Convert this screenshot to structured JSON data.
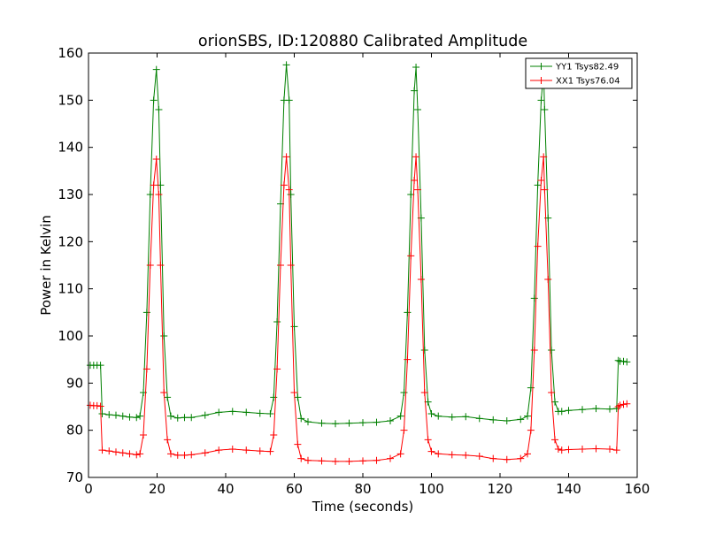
{
  "chart_data": {
    "type": "line",
    "title": "orionSBS, ID:120880 Calibrated Amplitude",
    "xlabel": "Time (seconds)",
    "ylabel": "Power in Kelvin",
    "xlim": [
      0,
      160
    ],
    "ylim": [
      70,
      160
    ],
    "x_ticks": [
      0,
      20,
      40,
      60,
      80,
      100,
      120,
      140,
      160
    ],
    "y_ticks": [
      70,
      80,
      90,
      100,
      110,
      120,
      130,
      140,
      150,
      160
    ],
    "x_tick_labels": [
      "0",
      "20",
      "40",
      "60",
      "80",
      "100",
      "120",
      "140",
      "160"
    ],
    "y_tick_labels": [
      "70",
      "80",
      "90",
      "100",
      "110",
      "120",
      "130",
      "140",
      "150",
      "160"
    ],
    "grid": false,
    "legend_position": "top-right",
    "marker": "plus",
    "series": [
      {
        "name": "YY1 Tsys82.49",
        "color": "#008000",
        "x": [
          0.5,
          1.5,
          2.5,
          3.5,
          4,
          6,
          8,
          10,
          12,
          14,
          15,
          16,
          17,
          18,
          19,
          19.8,
          20.5,
          21,
          22,
          23,
          24,
          26,
          28,
          30,
          34,
          38,
          42,
          46,
          50,
          53,
          54,
          55,
          56,
          57,
          57.7,
          58.5,
          59,
          60,
          61,
          62,
          64,
          68,
          72,
          76,
          80,
          84,
          88,
          91,
          92,
          93,
          94,
          95,
          95.5,
          96,
          97,
          98,
          99,
          100,
          102,
          106,
          110,
          114,
          118,
          122,
          126,
          128,
          129,
          130,
          131,
          132,
          132.7,
          133,
          134,
          135,
          136,
          137,
          138,
          140,
          144,
          148,
          152,
          154,
          154.5,
          155,
          156,
          157
        ],
        "values": [
          93.8,
          93.8,
          93.8,
          93.8,
          83.5,
          83.3,
          83.2,
          83.0,
          82.8,
          82.7,
          83.0,
          88.0,
          105.0,
          130.0,
          150.0,
          156.5,
          148.0,
          132.0,
          100.0,
          87.0,
          83.0,
          82.6,
          82.7,
          82.7,
          83.2,
          83.8,
          84.0,
          83.8,
          83.6,
          83.5,
          87.0,
          103.0,
          128.0,
          150.0,
          157.5,
          150.0,
          130.0,
          102.0,
          87.0,
          82.5,
          81.8,
          81.5,
          81.4,
          81.5,
          81.6,
          81.7,
          82.0,
          83.0,
          88.0,
          105.0,
          130.0,
          152.0,
          157.0,
          148.0,
          125.0,
          97.0,
          86.0,
          83.5,
          83.0,
          82.8,
          82.9,
          82.5,
          82.2,
          82.0,
          82.3,
          83.0,
          89.0,
          108.0,
          132.0,
          150.0,
          156.0,
          148.0,
          125.0,
          97.0,
          86.0,
          84.0,
          84.0,
          84.2,
          84.4,
          84.6,
          84.5,
          84.6,
          94.8,
          94.6,
          94.6,
          94.5
        ]
      },
      {
        "name": "XX1 Tsys76.04",
        "color": "#ff0000",
        "x": [
          0.5,
          1.5,
          2.5,
          3.5,
          4,
          6,
          8,
          10,
          12,
          14,
          15,
          16,
          17,
          18,
          19,
          19.8,
          20.5,
          21,
          22,
          23,
          24,
          26,
          28,
          30,
          34,
          38,
          42,
          46,
          50,
          53,
          54,
          55,
          56,
          57,
          57.7,
          58.5,
          59,
          60,
          61,
          62,
          64,
          68,
          72,
          76,
          80,
          84,
          88,
          91,
          92,
          93,
          94,
          95,
          95.5,
          96,
          97,
          98,
          99,
          100,
          102,
          106,
          110,
          114,
          118,
          122,
          126,
          128,
          129,
          130,
          131,
          132,
          132.7,
          133,
          134,
          135,
          136,
          137,
          138,
          140,
          144,
          148,
          152,
          154,
          154.5,
          155,
          156,
          157
        ],
        "values": [
          85.3,
          85.2,
          85.2,
          85.1,
          75.8,
          75.6,
          75.4,
          75.2,
          75.0,
          74.8,
          75.0,
          79.0,
          93.0,
          115.0,
          132.0,
          137.5,
          130.0,
          115.0,
          88.0,
          78.0,
          75.0,
          74.7,
          74.7,
          74.8,
          75.2,
          75.8,
          76.0,
          75.8,
          75.6,
          75.5,
          79.0,
          93.0,
          115.0,
          132.0,
          138.0,
          131.0,
          115.0,
          88.0,
          77.0,
          74.0,
          73.6,
          73.5,
          73.4,
          73.4,
          73.5,
          73.6,
          74.0,
          75.0,
          80.0,
          95.0,
          117.0,
          133.0,
          138.0,
          131.0,
          112.0,
          88.0,
          78.0,
          75.5,
          75.0,
          74.8,
          74.7,
          74.5,
          74.0,
          73.8,
          74.0,
          75.0,
          80.0,
          97.0,
          119.0,
          133.0,
          138.0,
          131.0,
          112.0,
          88.0,
          78.0,
          76.0,
          75.8,
          75.9,
          76.0,
          76.1,
          76.0,
          75.8,
          85.0,
          85.3,
          85.5,
          85.6
        ]
      }
    ]
  }
}
